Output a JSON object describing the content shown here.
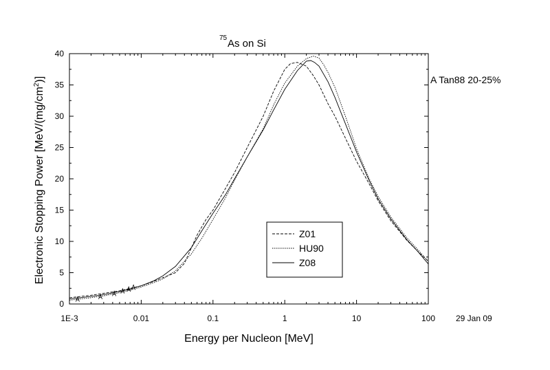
{
  "chart_data": {
    "type": "line",
    "title_sup": "75",
    "title": "As on Si",
    "xlabel": "Energy per Nucleon [MeV]",
    "ylabel": "Electronic Stopping Power [MeV/(mg/cm2)]",
    "ylabel_main": "Electronic Stopping Power [MeV/(mg/cm",
    "ylabel_sup": "2",
    "ylabel_tail": ")]",
    "xscale": "log",
    "xlim": [
      0.001,
      100
    ],
    "ylim": [
      0,
      40
    ],
    "xticks": [
      0.001,
      0.01,
      0.1,
      1,
      10,
      100
    ],
    "xtick_labels": [
      "1E-3",
      "0.01",
      "0.1",
      "1",
      "10",
      "100"
    ],
    "yticks": [
      0,
      5,
      10,
      15,
      20,
      25,
      30,
      35,
      40
    ],
    "ytick_labels": [
      "0",
      "5",
      "10",
      "15",
      "20",
      "25",
      "30",
      "35",
      "40"
    ],
    "grid": false,
    "legend_position": "bottom-center",
    "annotation": "A Tan88 20-25%",
    "date_label": "29 Jan 09",
    "series": [
      {
        "name": "Z01",
        "style": "dashed",
        "x": [
          0.001,
          0.002,
          0.003,
          0.005,
          0.007,
          0.01,
          0.015,
          0.02,
          0.03,
          0.04,
          0.06,
          0.08,
          0.1,
          0.15,
          0.2,
          0.3,
          0.5,
          0.7,
          1.0,
          1.2,
          1.5,
          2.0,
          2.5,
          3.0,
          4.0,
          5.0,
          7.0,
          10,
          15,
          20,
          30,
          50,
          70,
          100
        ],
        "y": [
          1.0,
          1.4,
          1.7,
          2.1,
          2.5,
          2.9,
          3.6,
          4.2,
          5.0,
          6.5,
          11.0,
          13.5,
          15.0,
          18.5,
          21.0,
          25.0,
          30.0,
          34.0,
          37.5,
          38.4,
          38.6,
          38.0,
          36.5,
          35.0,
          32.0,
          30.0,
          26.5,
          22.8,
          19.2,
          16.5,
          13.3,
          10.2,
          8.5,
          6.8
        ]
      },
      {
        "name": "HU90",
        "style": "dotted",
        "x": [
          0.001,
          0.002,
          0.003,
          0.005,
          0.007,
          0.01,
          0.015,
          0.02,
          0.03,
          0.05,
          0.07,
          0.1,
          0.15,
          0.2,
          0.3,
          0.5,
          0.7,
          1.0,
          1.5,
          2.0,
          2.5,
          3.0,
          3.5,
          4.0,
          5.0,
          7.0,
          10,
          15,
          20,
          30,
          50,
          70,
          100
        ],
        "y": [
          0.6,
          1.0,
          1.3,
          1.8,
          2.2,
          2.7,
          3.4,
          4.0,
          5.3,
          8.0,
          10.5,
          13.5,
          17.0,
          19.8,
          23.5,
          28.0,
          31.8,
          35.3,
          38.0,
          39.2,
          39.6,
          39.3,
          38.2,
          37.0,
          34.6,
          30.0,
          24.8,
          20.0,
          17.2,
          13.9,
          10.6,
          8.8,
          6.8
        ]
      },
      {
        "name": "Z08",
        "style": "solid",
        "x": [
          0.001,
          0.002,
          0.003,
          0.005,
          0.007,
          0.01,
          0.015,
          0.02,
          0.03,
          0.05,
          0.07,
          0.1,
          0.15,
          0.2,
          0.3,
          0.5,
          0.7,
          1.0,
          1.5,
          2.0,
          2.3,
          2.6,
          3.0,
          4.0,
          5.0,
          7.0,
          10,
          15,
          20,
          30,
          50,
          70,
          100
        ],
        "y": [
          0.8,
          1.2,
          1.5,
          2.0,
          2.4,
          2.9,
          3.7,
          4.5,
          6.0,
          9.0,
          11.7,
          14.5,
          17.5,
          20.0,
          23.5,
          27.8,
          31.0,
          34.3,
          37.3,
          38.8,
          38.9,
          38.6,
          38.0,
          35.5,
          33.0,
          28.8,
          24.3,
          19.7,
          16.8,
          13.6,
          10.3,
          8.5,
          6.4
        ]
      }
    ],
    "experimental_points": [
      {
        "x": 0.0013,
        "y": 0.7
      },
      {
        "x": 0.0027,
        "y": 1.1
      },
      {
        "x": 0.0042,
        "y": 1.6
      },
      {
        "x": 0.0055,
        "y": 2.0
      },
      {
        "x": 0.0067,
        "y": 2.3
      },
      {
        "x": 0.0078,
        "y": 2.6
      }
    ]
  }
}
